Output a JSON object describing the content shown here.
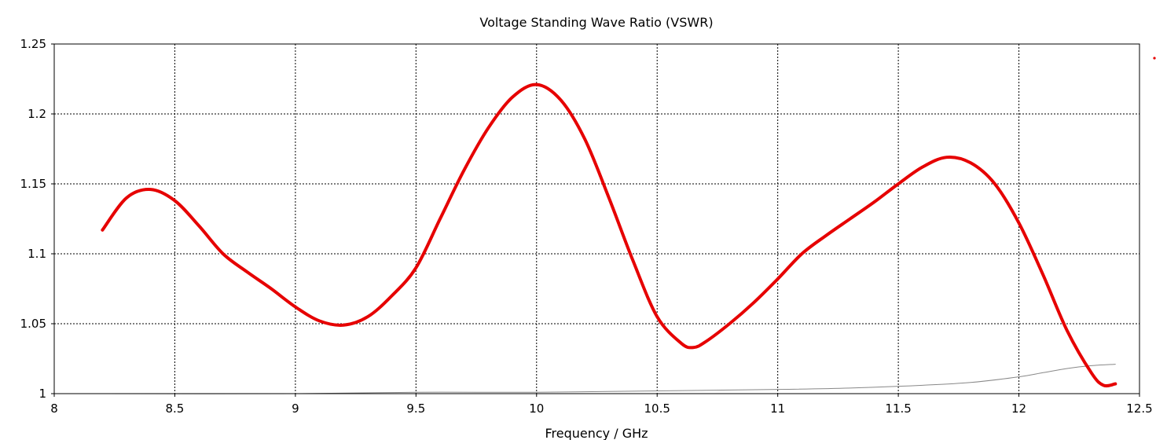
{
  "chart_data": {
    "type": "line",
    "title": "Voltage Standing Wave Ratio (VSWR)",
    "xlabel": "Frequency / GHz",
    "ylabel": "",
    "xlim": [
      8,
      12.5
    ],
    "ylim": [
      1,
      1.25
    ],
    "x_ticks": [
      "8",
      "8.5",
      "9",
      "9.5",
      "10",
      "10.5",
      "11",
      "11.5",
      "12",
      "12.5"
    ],
    "y_ticks": [
      "1",
      "1.05",
      "1.1",
      "1.15",
      "1.2",
      "1.25"
    ],
    "grid": true,
    "series": [
      {
        "color": "#e60000",
        "x": [
          8.2,
          8.3,
          8.4,
          8.5,
          8.6,
          8.7,
          8.8,
          8.9,
          9.0,
          9.1,
          9.2,
          9.3,
          9.4,
          9.5,
          9.6,
          9.7,
          9.8,
          9.9,
          10.0,
          10.1,
          10.2,
          10.3,
          10.4,
          10.5,
          10.6,
          10.65,
          10.7,
          10.8,
          10.9,
          11.0,
          11.1,
          11.2,
          11.3,
          11.4,
          11.5,
          11.6,
          11.7,
          11.8,
          11.9,
          12.0,
          12.1,
          12.2,
          12.3,
          12.35,
          12.4
        ],
        "y": [
          1.117,
          1.14,
          1.146,
          1.138,
          1.12,
          1.1,
          1.087,
          1.075,
          1.062,
          1.052,
          1.049,
          1.055,
          1.07,
          1.09,
          1.125,
          1.16,
          1.19,
          1.212,
          1.221,
          1.21,
          1.182,
          1.14,
          1.095,
          1.055,
          1.036,
          1.033,
          1.037,
          1.05,
          1.065,
          1.082,
          1.1,
          1.113,
          1.125,
          1.137,
          1.15,
          1.162,
          1.169,
          1.165,
          1.15,
          1.122,
          1.085,
          1.045,
          1.015,
          1.006,
          1.007
        ]
      },
      {
        "color": "#888888",
        "x": [
          8.2,
          9.0,
          9.5,
          10.0,
          10.5,
          11.0,
          11.3,
          11.6,
          11.8,
          12.0,
          12.1,
          12.2,
          12.3,
          12.4
        ],
        "y": [
          1.0,
          1.0,
          1.001,
          1.001,
          1.002,
          1.003,
          1.004,
          1.006,
          1.008,
          1.012,
          1.015,
          1.018,
          1.02,
          1.021
        ]
      }
    ]
  }
}
